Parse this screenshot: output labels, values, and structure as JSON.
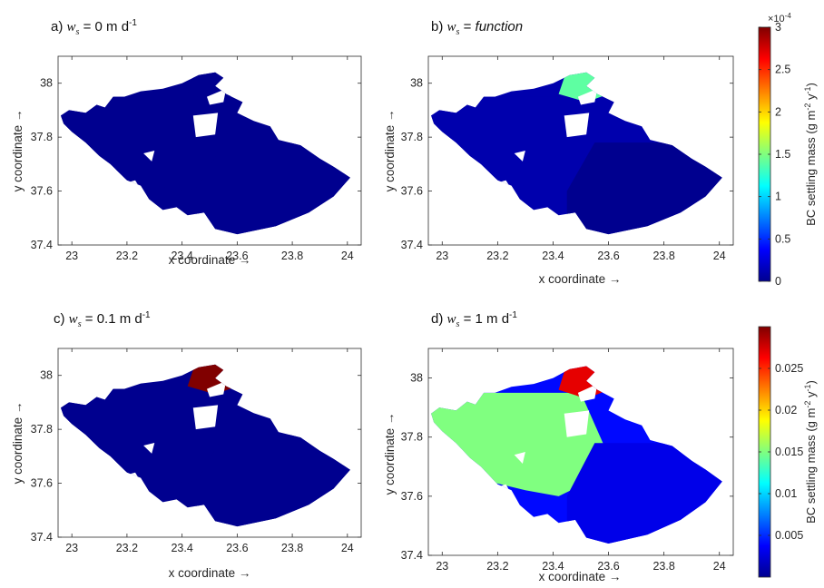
{
  "chart_data": [
    {
      "type": "heatmap",
      "panel": "a",
      "title_prefix": "a) ",
      "title_var": "w",
      "title_sub": "s",
      "title_rest": " = 0 m d",
      "title_sup": "-1",
      "title_italic_rest": false,
      "xlabel": "x coordinate →",
      "ylabel": "y coordinate →",
      "xlim": [
        22.95,
        24.05
      ],
      "ylim": [
        37.4,
        38.1
      ],
      "xticks": [
        "23",
        "23.2",
        "23.4",
        "23.6",
        "23.8",
        "24"
      ],
      "yticks": [
        "37.4",
        "37.6",
        "37.8",
        "38"
      ],
      "field": {
        "base": 0.0,
        "northern_patch": 0.0,
        "western_area": 0.0,
        "east_area": 0.0
      }
    },
    {
      "type": "heatmap",
      "panel": "b",
      "title_prefix": "b) ",
      "title_var": "w",
      "title_sub": "s",
      "title_rest": " = ",
      "title_italic_word": "function",
      "title_sup": "",
      "xlabel": "x coordinate →",
      "ylabel": "y coordinate →",
      "xlim": [
        22.95,
        24.05
      ],
      "ylim": [
        37.4,
        38.1
      ],
      "xticks": [
        "23",
        "23.2",
        "23.4",
        "23.6",
        "23.8",
        "24"
      ],
      "yticks": [
        "37.4",
        "37.6",
        "37.8",
        "38"
      ],
      "field": {
        "base": 1e-05,
        "northern_patch": 0.00014,
        "western_area": 1e-05,
        "east_area": 0.0
      },
      "colorbar": {
        "min": 0,
        "max": 0.0003,
        "exponent_label": "×10",
        "exponent_sup": "-4",
        "ticks": [
          "0",
          "0.5",
          "1",
          "1.5",
          "2",
          "2.5",
          "3"
        ],
        "label": "BC settling mass (g m",
        "label_sup1": "-2",
        "label_mid": " y",
        "label_sup2": "-1",
        "label_end": ")"
      }
    },
    {
      "type": "heatmap",
      "panel": "c",
      "title_prefix": "c) ",
      "title_var": "w",
      "title_sub": "s",
      "title_rest": " = 0.1 m d",
      "title_sup": "-1",
      "xlabel": "x coordinate →",
      "ylabel": "y coordinate →",
      "xlim": [
        22.95,
        24.05
      ],
      "ylim": [
        37.4,
        38.1
      ],
      "xticks": [
        "23",
        "23.2",
        "23.4",
        "23.6",
        "23.8",
        "24"
      ],
      "yticks": [
        "37.4",
        "37.6",
        "37.8",
        "38"
      ],
      "field": {
        "base": 0.0,
        "northern_patch": 0.0006,
        "western_area": 0.0,
        "east_area": 0.0
      }
    },
    {
      "type": "heatmap",
      "panel": "d",
      "title_prefix": "d) ",
      "title_var": "w",
      "title_sub": "s",
      "title_rest": " = 1 m d",
      "title_sup": "-1",
      "xlabel": "x coordinate →",
      "ylabel": "y coordinate →",
      "xlim": [
        22.95,
        24.05
      ],
      "ylim": [
        37.4,
        38.1
      ],
      "xticks": [
        "23",
        "23.2",
        "23.4",
        "23.6",
        "23.8",
        "24"
      ],
      "yticks": [
        "37.4",
        "37.6",
        "37.8",
        "38"
      ],
      "field": {
        "base": 0.004,
        "northern_patch": 0.027,
        "western_area": 0.015,
        "east_area": 0.003
      },
      "colorbar": {
        "min": 0,
        "max": 0.03,
        "ticks": [
          "0.005",
          "0.01",
          "0.015",
          "0.02",
          "0.025"
        ],
        "tick_values": [
          0.005,
          0.01,
          0.015,
          0.02,
          0.025
        ],
        "label": "BC settling mass (g m",
        "label_sup1": "-2",
        "label_mid": " y",
        "label_sup2": "-1",
        "label_end": ")"
      }
    }
  ],
  "colormap": "jet"
}
